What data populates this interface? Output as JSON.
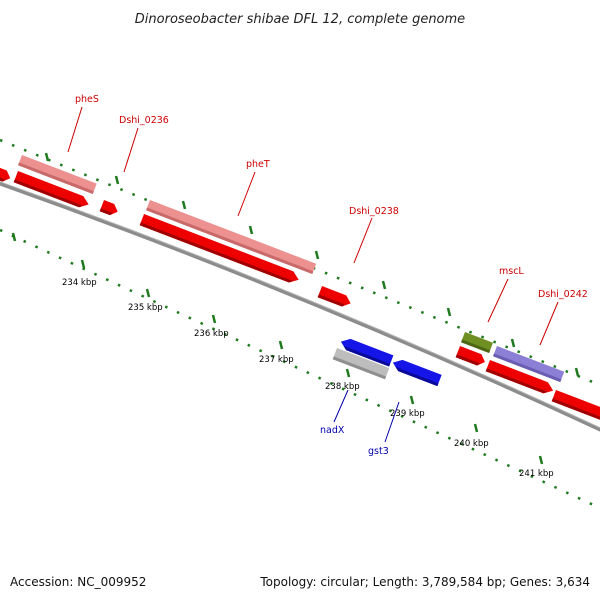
{
  "title": "Dinoroseobacter shibae DFL 12, complete genome",
  "footer": {
    "accession": "Accession: NC_009952",
    "summary": "Topology: circular; Length: 3,789,584 bp; Genes: 3,634"
  },
  "colors": {
    "backbone": "#8c8c8c",
    "tick": "#1f7a1f",
    "label_top": "#cc0000",
    "label_bottom": "#0000aa",
    "cds": "#ee0000",
    "gene_light_red": "#ec9090",
    "gene_olive": "#6f8f23",
    "gene_purple": "#8c7fd6",
    "gene_blue": "#1515e8",
    "gene_gray": "#bdbdbd"
  },
  "kbp_labels": [
    "234 kbp",
    "235 kbp",
    "236 kbp",
    "237 kbp",
    "238 kbp",
    "239 kbp",
    "240 kbp",
    "241 kbp"
  ],
  "gene_labels_above": [
    "pheS",
    "Dshi_0236",
    "pheT",
    "Dshi_0238",
    "mscL",
    "Dshi_0242"
  ],
  "gene_labels_below": [
    "nadX",
    "gst3"
  ]
}
